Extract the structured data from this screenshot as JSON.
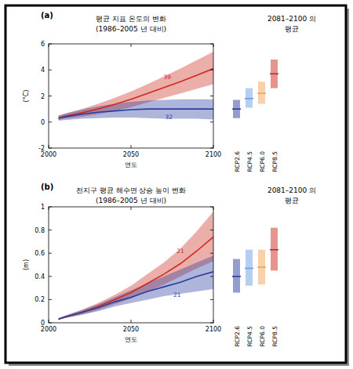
{
  "chart_data": [
    {
      "type": "line",
      "label": "(a)",
      "title": "평균 지표 온도의 변화",
      "subtitle": "(1986–2005 년 대비)",
      "y_label": "(°C)",
      "x_label": "연도",
      "x": [
        2006,
        2010,
        2020,
        2030,
        2040,
        2050,
        2060,
        2070,
        2080,
        2090,
        2100
      ],
      "xlim": [
        2000,
        2100
      ],
      "xticks": [
        2000,
        2050,
        2100
      ],
      "ylim": [
        -2,
        6
      ],
      "yticks": [
        -2,
        0,
        2,
        4,
        6
      ],
      "series": [
        {
          "color": "#cc2a1e",
          "values": [
            0.3,
            0.45,
            0.7,
            1.0,
            1.35,
            1.75,
            2.2,
            2.65,
            3.1,
            3.6,
            4.1
          ],
          "lower": [
            0.15,
            0.25,
            0.4,
            0.6,
            0.85,
            1.15,
            1.5,
            1.85,
            2.2,
            2.55,
            2.9
          ],
          "upper": [
            0.5,
            0.65,
            1.0,
            1.4,
            1.85,
            2.35,
            2.9,
            3.5,
            4.1,
            4.75,
            5.4
          ]
        },
        {
          "color": "#2b3c9e",
          "values": [
            0.3,
            0.4,
            0.6,
            0.75,
            0.85,
            0.95,
            1.0,
            1.0,
            1.0,
            1.0,
            1.0
          ],
          "lower": [
            0.1,
            0.15,
            0.25,
            0.3,
            0.35,
            0.35,
            0.3,
            0.25,
            0.25,
            0.25,
            0.2
          ],
          "upper": [
            0.5,
            0.65,
            0.95,
            1.2,
            1.4,
            1.55,
            1.65,
            1.7,
            1.75,
            1.75,
            1.75
          ]
        }
      ],
      "annotations": [
        {
          "text": "39",
          "x": 2072,
          "y": 3.3,
          "color": "#cc2a1e"
        },
        {
          "text": "32",
          "x": 2073,
          "y": 0.25,
          "color": "#2b3c9e"
        }
      ],
      "ranges": {
        "title": [
          "2081–2100 의",
          "평균"
        ],
        "categories": [
          "RCP2.6",
          "RCP4.5",
          "RCP6.0",
          "RCP8.5"
        ],
        "low": [
          0.3,
          1.1,
          1.4,
          2.6
        ],
        "mean": [
          1.0,
          1.8,
          2.2,
          3.7
        ],
        "high": [
          1.7,
          2.6,
          3.1,
          4.8
        ],
        "colors": [
          "#2b3c9e",
          "#6d9ee0",
          "#f0a35a",
          "#cc2a1e"
        ]
      }
    },
    {
      "type": "line",
      "label": "(b)",
      "title": "전지구 평균 해수면 상승 높이 변화",
      "subtitle": "(1986–2005 년 대비)",
      "y_label": "(m)",
      "x_label": "연도",
      "x": [
        2006,
        2010,
        2020,
        2030,
        2040,
        2050,
        2060,
        2070,
        2080,
        2090,
        2100
      ],
      "xlim": [
        2000,
        2100
      ],
      "xticks": [
        2000,
        2050,
        2100
      ],
      "ylim": [
        0,
        1
      ],
      "yticks": [
        0,
        0.2,
        0.4,
        0.6,
        0.8,
        1
      ],
      "series": [
        {
          "color": "#cc2a1e",
          "values": [
            0.03,
            0.05,
            0.09,
            0.14,
            0.2,
            0.26,
            0.34,
            0.42,
            0.51,
            0.62,
            0.74
          ],
          "lower": [
            0.03,
            0.04,
            0.07,
            0.11,
            0.16,
            0.21,
            0.27,
            0.33,
            0.4,
            0.47,
            0.53
          ],
          "upper": [
            0.04,
            0.06,
            0.11,
            0.17,
            0.24,
            0.32,
            0.42,
            0.52,
            0.64,
            0.79,
            0.96
          ]
        },
        {
          "color": "#2b3c9e",
          "values": [
            0.03,
            0.05,
            0.09,
            0.13,
            0.18,
            0.22,
            0.27,
            0.31,
            0.35,
            0.4,
            0.44
          ],
          "lower": [
            0.03,
            0.04,
            0.07,
            0.1,
            0.14,
            0.17,
            0.2,
            0.23,
            0.25,
            0.27,
            0.29
          ],
          "upper": [
            0.04,
            0.06,
            0.11,
            0.16,
            0.22,
            0.28,
            0.34,
            0.4,
            0.46,
            0.52,
            0.58
          ]
        }
      ],
      "annotations": [
        {
          "text": "21",
          "x": 2080,
          "y": 0.6,
          "color": "#cc2a1e"
        },
        {
          "text": "21",
          "x": 2078,
          "y": 0.22,
          "color": "#2b3c9e"
        }
      ],
      "ranges": {
        "title": [
          "2081–2100 의",
          "평균"
        ],
        "categories": [
          "RCP2.6",
          "RCP4.5",
          "RCP6.0",
          "RCP8.5"
        ],
        "low": [
          0.26,
          0.32,
          0.33,
          0.45
        ],
        "mean": [
          0.4,
          0.47,
          0.48,
          0.63
        ],
        "high": [
          0.55,
          0.63,
          0.63,
          0.82
        ],
        "colors": [
          "#2b3c9e",
          "#6d9ee0",
          "#f0a35a",
          "#cc2a1e"
        ]
      }
    }
  ]
}
